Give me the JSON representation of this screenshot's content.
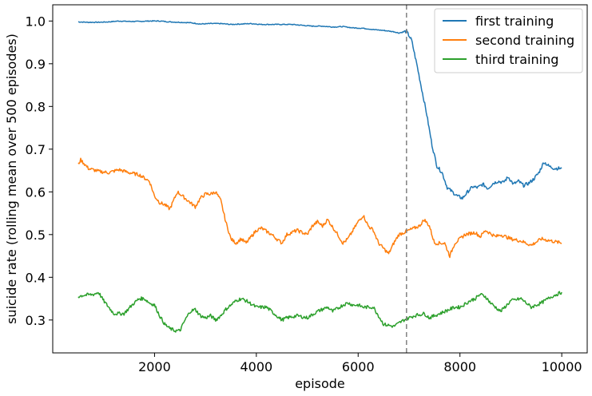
{
  "chart_data": {
    "type": "line",
    "title": "",
    "xlabel": "episode",
    "ylabel": "suicide rate (rolling mean over 500 episodes)",
    "xlim": [
      0,
      10500
    ],
    "ylim": [
      0.223,
      1.038
    ],
    "xticks": [
      2000,
      4000,
      6000,
      8000,
      10000
    ],
    "yticks": [
      0.3,
      0.4,
      0.5,
      0.6,
      0.7,
      0.8,
      0.9,
      1.0
    ],
    "xtick_labels": [
      "2000",
      "4000",
      "6000",
      "8000",
      "10000"
    ],
    "ytick_labels": [
      "0.3",
      "0.4",
      "0.5",
      "0.6",
      "0.7",
      "0.8",
      "0.9",
      "1.0"
    ],
    "grid": false,
    "legend_position": "top-right",
    "vline": {
      "x": 6950,
      "style": "dashed",
      "color": "#808080"
    },
    "series": [
      {
        "name": "first training",
        "color": "#1f77b4",
        "x": [
          500,
          700,
          900,
          1100,
          1300,
          1500,
          1700,
          1900,
          2100,
          2300,
          2500,
          2700,
          2900,
          3100,
          3300,
          3500,
          3700,
          3900,
          4100,
          4300,
          4500,
          4700,
          4900,
          5100,
          5300,
          5500,
          5700,
          5900,
          6100,
          6300,
          6500,
          6700,
          6800,
          6950,
          7050,
          7150,
          7250,
          7350,
          7450,
          7550,
          7650,
          7750,
          7850,
          7950,
          8050,
          8150,
          8250,
          8350,
          8450,
          8550,
          8650,
          8750,
          8850,
          8950,
          9050,
          9150,
          9250,
          9350,
          9450,
          9550,
          9650,
          9750,
          9850,
          10000
        ],
        "y": [
          0.998,
          0.997,
          0.997,
          0.998,
          1.0,
          0.999,
          0.999,
          1.0,
          1.0,
          0.998,
          0.997,
          0.996,
          0.993,
          0.994,
          0.994,
          0.992,
          0.993,
          0.994,
          0.992,
          0.992,
          0.992,
          0.992,
          0.99,
          0.988,
          0.988,
          0.986,
          0.987,
          0.984,
          0.983,
          0.98,
          0.978,
          0.975,
          0.972,
          0.976,
          0.955,
          0.9,
          0.84,
          0.78,
          0.71,
          0.66,
          0.645,
          0.61,
          0.6,
          0.59,
          0.585,
          0.6,
          0.612,
          0.61,
          0.618,
          0.608,
          0.62,
          0.625,
          0.622,
          0.635,
          0.618,
          0.625,
          0.615,
          0.62,
          0.63,
          0.645,
          0.67,
          0.66,
          0.655,
          0.655
        ]
      },
      {
        "name": "second training",
        "color": "#ff7f0e",
        "x": [
          500,
          550,
          700,
          900,
          1100,
          1300,
          1500,
          1700,
          1900,
          2000,
          2100,
          2200,
          2300,
          2450,
          2600,
          2700,
          2800,
          2900,
          3000,
          3100,
          3200,
          3300,
          3400,
          3500,
          3600,
          3700,
          3800,
          3900,
          4000,
          4100,
          4300,
          4500,
          4600,
          4800,
          5000,
          5100,
          5200,
          5300,
          5400,
          5600,
          5700,
          5800,
          6000,
          6100,
          6200,
          6300,
          6400,
          6600,
          6700,
          6800,
          7000,
          7200,
          7300,
          7400,
          7500,
          7700,
          7800,
          7900,
          8000,
          8100,
          8300,
          8400,
          8500,
          8700,
          8800,
          9000,
          9200,
          9400,
          9600,
          9800,
          10000
        ],
        "y": [
          0.665,
          0.675,
          0.655,
          0.648,
          0.645,
          0.652,
          0.645,
          0.64,
          0.625,
          0.59,
          0.575,
          0.57,
          0.56,
          0.6,
          0.585,
          0.575,
          0.565,
          0.585,
          0.595,
          0.595,
          0.6,
          0.58,
          0.53,
          0.49,
          0.48,
          0.49,
          0.48,
          0.495,
          0.51,
          0.515,
          0.5,
          0.48,
          0.5,
          0.51,
          0.5,
          0.52,
          0.53,
          0.52,
          0.535,
          0.5,
          0.48,
          0.49,
          0.53,
          0.545,
          0.52,
          0.51,
          0.48,
          0.455,
          0.48,
          0.5,
          0.51,
          0.52,
          0.535,
          0.52,
          0.48,
          0.48,
          0.45,
          0.48,
          0.49,
          0.5,
          0.505,
          0.495,
          0.51,
          0.495,
          0.5,
          0.49,
          0.485,
          0.475,
          0.49,
          0.485,
          0.48
        ]
      },
      {
        "name": "third training",
        "color": "#2ca02c",
        "x": [
          500,
          600,
          800,
          900,
          1000,
          1100,
          1200,
          1400,
          1600,
          1700,
          1800,
          1900,
          2000,
          2100,
          2200,
          2300,
          2400,
          2500,
          2600,
          2700,
          2800,
          2900,
          3000,
          3100,
          3200,
          3300,
          3400,
          3600,
          3700,
          3800,
          4000,
          4200,
          4400,
          4500,
          4600,
          4800,
          5000,
          5200,
          5400,
          5500,
          5700,
          5800,
          5900,
          6000,
          6100,
          6300,
          6400,
          6500,
          6700,
          6900,
          7100,
          7300,
          7400,
          7500,
          7700,
          7900,
          8000,
          8200,
          8300,
          8400,
          8500,
          8600,
          8800,
          9000,
          9200,
          9400,
          9600,
          9800,
          10000
        ],
        "y": [
          0.355,
          0.358,
          0.36,
          0.365,
          0.345,
          0.33,
          0.315,
          0.315,
          0.34,
          0.35,
          0.35,
          0.34,
          0.335,
          0.31,
          0.29,
          0.28,
          0.275,
          0.275,
          0.3,
          0.32,
          0.325,
          0.31,
          0.305,
          0.31,
          0.3,
          0.31,
          0.325,
          0.345,
          0.35,
          0.345,
          0.33,
          0.33,
          0.31,
          0.3,
          0.305,
          0.31,
          0.305,
          0.32,
          0.33,
          0.32,
          0.335,
          0.34,
          0.335,
          0.335,
          0.33,
          0.33,
          0.31,
          0.29,
          0.285,
          0.3,
          0.31,
          0.315,
          0.305,
          0.31,
          0.32,
          0.33,
          0.33,
          0.345,
          0.35,
          0.36,
          0.355,
          0.34,
          0.32,
          0.345,
          0.35,
          0.33,
          0.34,
          0.355,
          0.365
        ]
      }
    ]
  }
}
